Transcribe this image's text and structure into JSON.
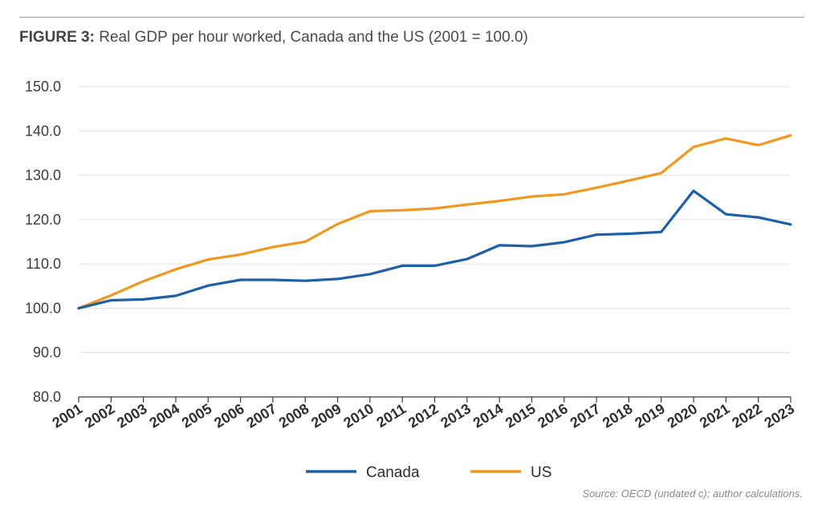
{
  "header": {
    "title_lead": "FIGURE 3:",
    "title_rest": "Real GDP per hour worked, Canada and the US (2001 = 100.0)"
  },
  "source": "Source: OECD (undated c); author calculations.",
  "colors": {
    "Canada": "#1f5fa8",
    "US": "#f0981f",
    "grid": "#e2e2e2",
    "axis": "#3a3a3a"
  },
  "chart_data": {
    "type": "line",
    "title": "Real GDP per hour worked, Canada and the US (2001 = 100.0)",
    "xlabel": "",
    "ylabel": "",
    "x": [
      "2001",
      "2002",
      "2003",
      "2004",
      "2005",
      "2006",
      "2007",
      "2008",
      "2009",
      "2010",
      "2011",
      "2012",
      "2013",
      "2014",
      "2015",
      "2016",
      "2017",
      "2018",
      "2019",
      "2020",
      "2021",
      "2022",
      "2023"
    ],
    "ylim": [
      80,
      150
    ],
    "yticks": [
      "80.0",
      "90.0",
      "100.0",
      "110.0",
      "120.0",
      "130.0",
      "140.0",
      "150.0"
    ],
    "grid": true,
    "legend_position": "bottom-center",
    "series": [
      {
        "name": "Canada",
        "values": [
          100.0,
          101.8,
          102.0,
          102.8,
          105.1,
          106.4,
          106.4,
          106.2,
          106.6,
          107.7,
          109.6,
          109.6,
          111.1,
          114.2,
          114.0,
          114.9,
          116.6,
          116.8,
          117.2,
          126.5,
          121.2,
          120.5,
          118.9
        ]
      },
      {
        "name": "US",
        "values": [
          100.0,
          102.9,
          106.1,
          108.8,
          111.0,
          112.1,
          113.8,
          115.0,
          119.0,
          121.9,
          122.1,
          122.5,
          123.4,
          124.2,
          125.2,
          125.7,
          127.2,
          128.8,
          130.5,
          136.4,
          138.3,
          136.8,
          139.0
        ]
      }
    ]
  }
}
